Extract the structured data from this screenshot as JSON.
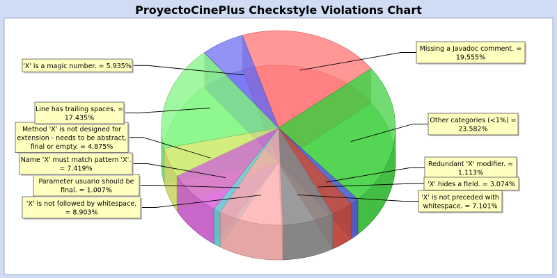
{
  "chart_data": {
    "type": "pie",
    "title": "ProyectoCinePlus Checkstyle Violations Chart",
    "slices": [
      {
        "label": "Missing a Javadoc comment.",
        "value": 19.555,
        "display": "19.555%",
        "color": "#ff6f6f"
      },
      {
        "label": "Other categories (<1%)",
        "value": 23.582,
        "display": "23.582%",
        "color": "#3ccf3c"
      },
      {
        "label": "Redundant 'X' modifier.",
        "value": 1.113,
        "display": "1.113%",
        "color": "#5a5ae6"
      },
      {
        "label": "'X' hides a field.",
        "value": 3.074,
        "display": "3.074%",
        "color": "#d24a3c"
      },
      {
        "label": "'X' is not preceded with whitespace.",
        "value": 7.101,
        "display": "7.101%",
        "color": "#8c8c8c"
      },
      {
        "label": "'X' is not followed by whitespace.",
        "value": 8.903,
        "display": "8.903%",
        "color": "#ffb4b4"
      },
      {
        "label": "Parameter usuario should be final.",
        "value": 1.007,
        "display": "1.007%",
        "color": "#66dede"
      },
      {
        "label": "Name 'X' must match pattern 'X'.",
        "value": 7.419,
        "display": "7.419%",
        "color": "#de66de"
      },
      {
        "label": "Method 'X' is not designed for extension - needs to be abstract, final or empty.",
        "value": 4.875,
        "display": "4.875%",
        "color": "#e6f07a"
      },
      {
        "label": "Line has trailing spaces.",
        "value": 17.435,
        "display": "17.435%",
        "color": "#7ef57e"
      },
      {
        "label": "'X' is a magic number.",
        "value": 5.935,
        "display": "5.935%",
        "color": "#6a6af2"
      }
    ],
    "label_lines": [
      [
        "Missing a Javadoc comment. =",
        "19.555%"
      ],
      [
        "Other categories (<1%) =",
        "23.582%"
      ],
      [
        "Redundant 'X' modifier. =",
        "1.113%"
      ],
      [
        "'X' hides a field. = 3.074%"
      ],
      [
        "'X' is not preceded with",
        "whitespace. = 7.101%"
      ],
      [
        "'X' is not followed by whitespace.",
        "= 8.903%"
      ],
      [
        "Parameter usuario should be",
        "final. = 1.007%"
      ],
      [
        "Name 'X' must match pattern 'X'.",
        "= 7.419%"
      ],
      [
        "Method 'X' is not designed for",
        "extension - needs to be abstract,",
        "final or empty. = 4.875%"
      ],
      [
        "Line has trailing spaces. =",
        "17.435%"
      ],
      [
        "'X' is a magic number. = 5.935%"
      ]
    ],
    "start_angle_deg": -108,
    "direction": "clockwise",
    "style": "3d-transparent",
    "legend": "none",
    "label_box_color": "#ffffc0"
  }
}
